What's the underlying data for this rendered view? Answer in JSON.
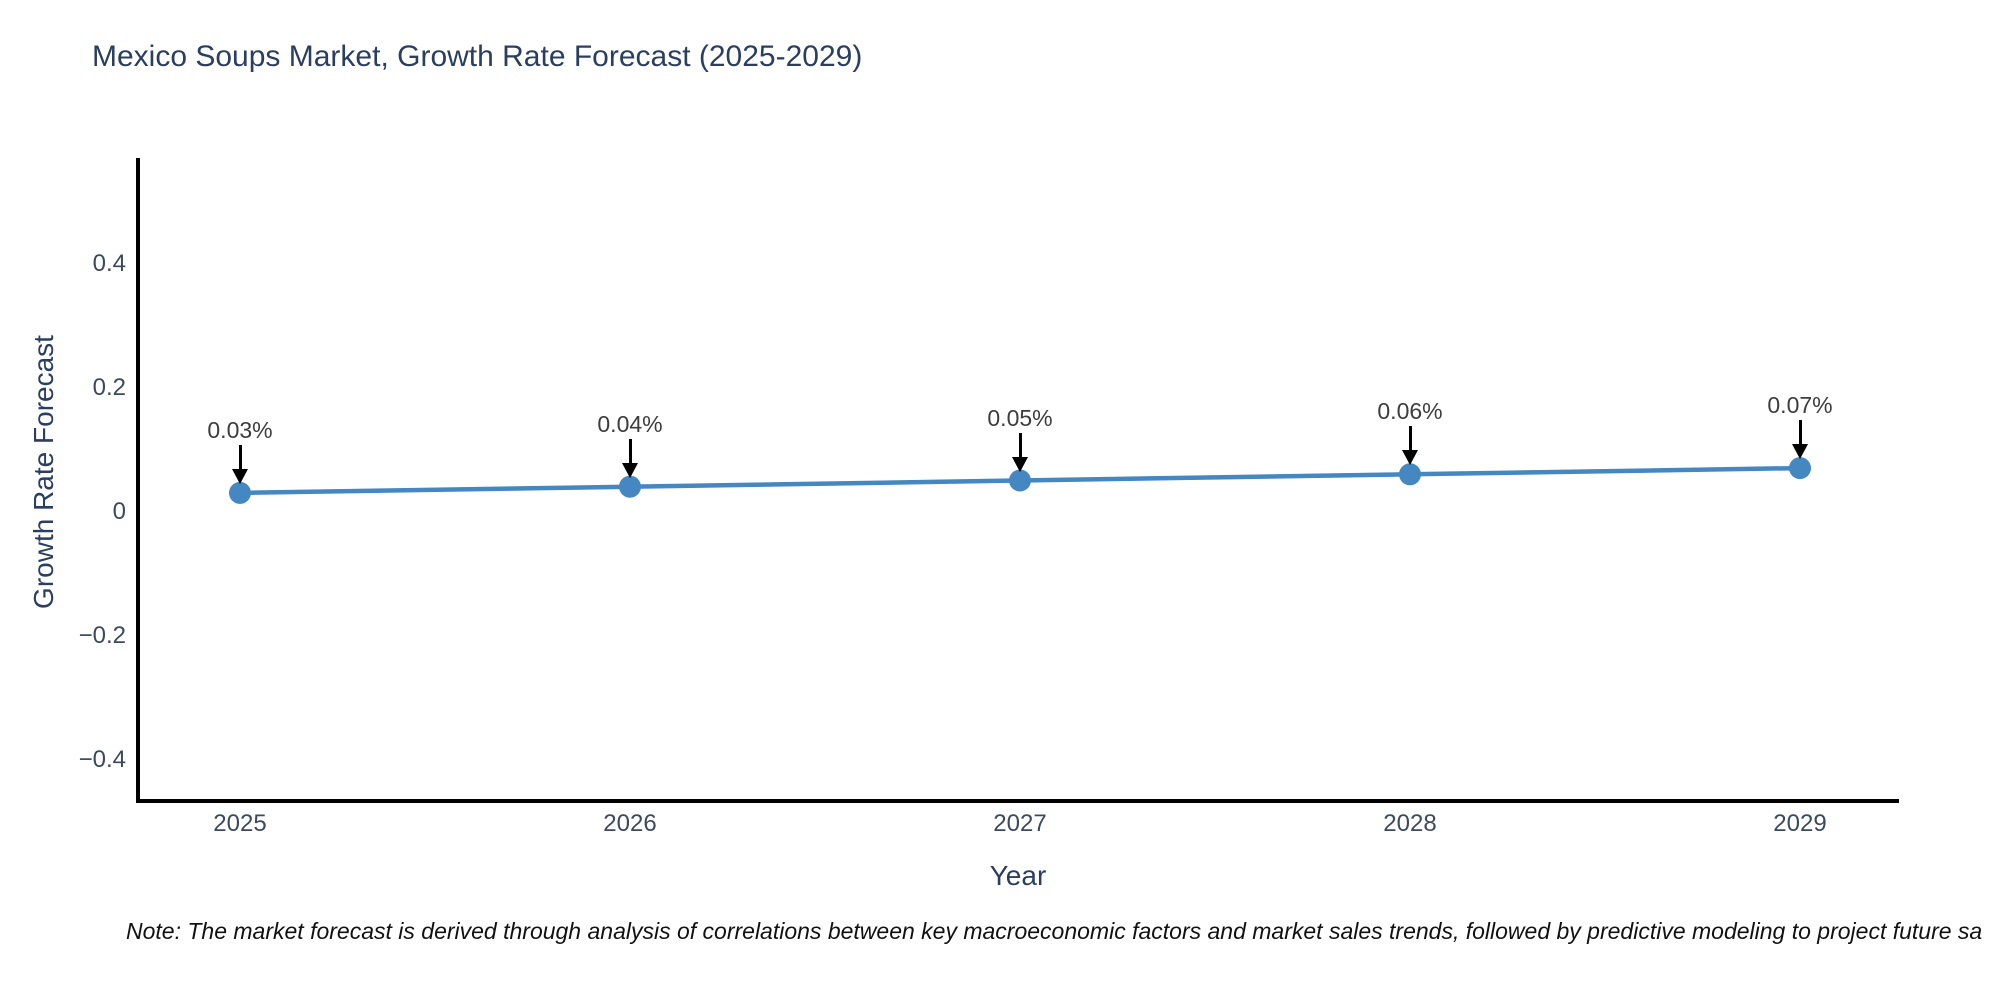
{
  "title": "Mexico Soups Market, Growth Rate Forecast (2025-2029)",
  "note": "Note: The market forecast is derived through analysis of correlations between key macroeconomic factors and market sales trends, followed by predictive modeling to project future sa",
  "colors": {
    "line": "#4487c1",
    "marker": "#4487c1",
    "axis_line": "#000000",
    "title_text": "#2a3f5f",
    "tick_text": "#3b4a5e",
    "annotation_text": "#3d3d3d",
    "arrow": "#000000",
    "background": "#ffffff"
  },
  "chart_data": {
    "type": "line",
    "title": "Mexico Soups Market, Growth Rate Forecast (2025-2029)",
    "xlabel": "Year",
    "ylabel": "Growth Rate Forecast",
    "categories": [
      "2025",
      "2026",
      "2027",
      "2028",
      "2029"
    ],
    "x": [
      2025,
      2026,
      2027,
      2028,
      2029
    ],
    "series": [
      {
        "name": "Growth Rate Forecast",
        "values": [
          0.03,
          0.04,
          0.05,
          0.06,
          0.07
        ]
      }
    ],
    "point_labels": [
      "0.03%",
      "0.04%",
      "0.05%",
      "0.06%",
      "0.07%"
    ],
    "annotation_arrow_direction": "down",
    "yticks": [
      {
        "label": "0.4",
        "value": 0.4
      },
      {
        "label": "0.2",
        "value": 0.2
      },
      {
        "label": "0",
        "value": 0.0
      },
      {
        "label": "−0.2",
        "value": -0.2
      },
      {
        "label": "−0.4",
        "value": -0.4
      }
    ],
    "ylim": [
      -0.47,
      0.57
    ],
    "xlim": [
      2024.74,
      2029.26
    ],
    "grid": false,
    "legend": "none",
    "marker_style": "circle"
  }
}
